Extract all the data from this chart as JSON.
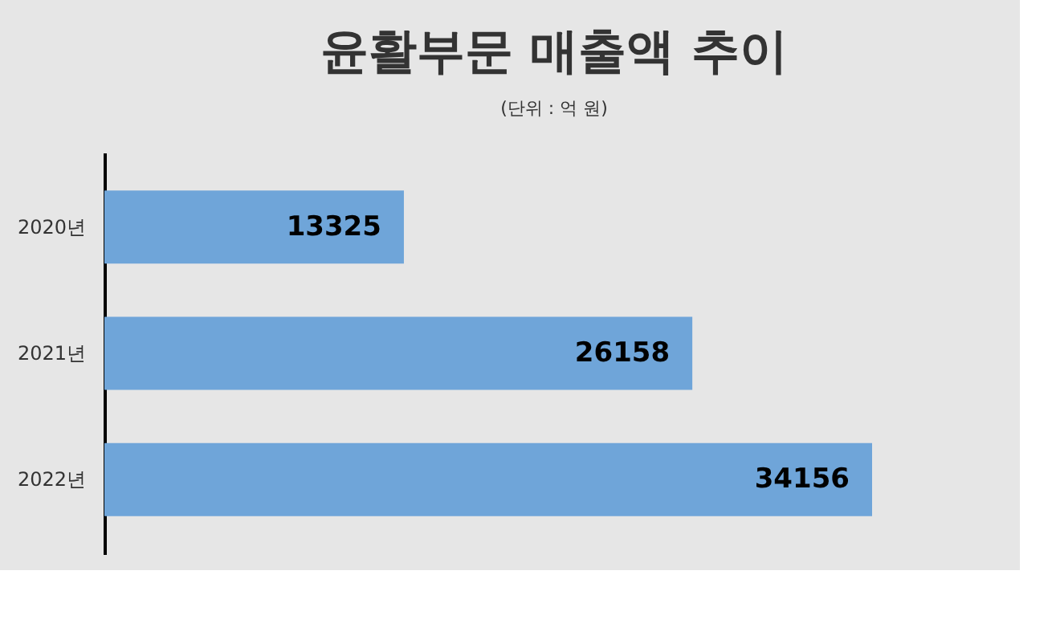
{
  "chart_data": {
    "type": "bar",
    "orientation": "horizontal",
    "title": "윤활부문 매출액 추이",
    "subtitle": "(단위 : 억 원)",
    "categories": [
      "2020년",
      "2021년",
      "2022년"
    ],
    "values": [
      13325,
      26158,
      34156
    ],
    "color": "#6fa5d9",
    "data_labels": true
  }
}
